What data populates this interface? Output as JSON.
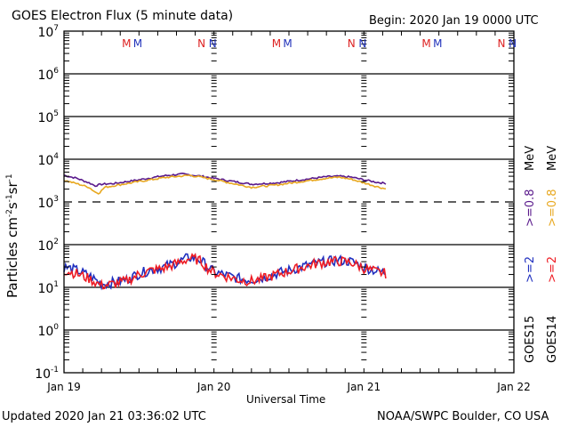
{
  "header": {
    "title": "GOES Electron Flux (5 minute data)",
    "begin": "Begin: 2020 Jan 19 0000 UTC"
  },
  "footer": {
    "updated": "Updated 2020 Jan 21 03:36:02 UTC",
    "source": "NOAA/SWPC Boulder, CO USA"
  },
  "legend": {
    "goes15": "GOES15",
    "goes14": "GOES14",
    "g15_2mev": ">=2",
    "g14_2mev": ">=2",
    "g15_08mev": ">=0.8",
    "g14_08mev": ">=0.8",
    "unit": "MeV"
  },
  "colors": {
    "goes15_2": "#1f2fbf",
    "goes14_2": "#ee1c24",
    "goes15_08": "#5a1a8c",
    "goes14_08": "#e8a820",
    "marker_red": "#dd2222",
    "marker_blue": "#2233bb"
  },
  "chart_data": {
    "type": "line",
    "title": "GOES Electron Flux (5 minute data)",
    "xlabel": "Universal Time",
    "ylabel": "Particles cm-2 s-1 sr-1",
    "x_unit": "hours since 2020 Jan 19 00:00 UTC",
    "xlim": [
      0,
      72
    ],
    "ylim": [
      0.1,
      10000000
    ],
    "yscale": "log",
    "x_tick_labels": [
      "Jan 19",
      "Jan 20",
      "Jan 21",
      "Jan 22"
    ],
    "x_tick_hours": [
      0,
      24,
      48,
      72
    ],
    "y_tick_labels": [
      "10^7",
      "10^6",
      "10^5",
      "10^4",
      "10^3",
      "10^2",
      "10^1",
      "10^0",
      "10^-1"
    ],
    "y_tick_values": [
      10000000,
      1000000,
      100000,
      10000,
      1000,
      100,
      10,
      1,
      0.1
    ],
    "grid": "horizontal decades",
    "threshold_line": {
      "value": 1000,
      "style": "dashed"
    },
    "markers": [
      {
        "label": "M",
        "hour": 10.0,
        "color": "red"
      },
      {
        "label": "M",
        "hour": 11.8,
        "color": "blue"
      },
      {
        "label": "N",
        "hour": 22.0,
        "color": "red"
      },
      {
        "label": "N",
        "hour": 23.8,
        "color": "blue"
      },
      {
        "label": "M",
        "hour": 34.0,
        "color": "red"
      },
      {
        "label": "M",
        "hour": 35.8,
        "color": "blue"
      },
      {
        "label": "N",
        "hour": 46.0,
        "color": "red"
      },
      {
        "label": "N",
        "hour": 47.8,
        "color": "blue"
      },
      {
        "label": "M",
        "hour": 58.0,
        "color": "red"
      },
      {
        "label": "M",
        "hour": 59.8,
        "color": "blue"
      },
      {
        "label": "N",
        "hour": 70.0,
        "color": "red"
      },
      {
        "label": "N",
        "hour": 71.8,
        "color": "blue"
      }
    ],
    "series": [
      {
        "name": "GOES15 >=0.8 MeV",
        "color_key": "goes15_08",
        "noise": 0.02,
        "x": [
          0,
          2,
          4,
          5,
          6,
          8,
          12,
          16,
          19,
          22,
          26,
          30,
          34,
          38,
          42,
          44,
          46,
          48,
          50,
          51.6
        ],
        "values": [
          4200,
          3600,
          2800,
          2400,
          2600,
          2700,
          3300,
          4100,
          4500,
          4000,
          3200,
          2600,
          2800,
          3300,
          3900,
          4000,
          3800,
          3300,
          2900,
          2700
        ]
      },
      {
        "name": "GOES14 >=0.8 MeV",
        "color_key": "goes14_08",
        "noise": 0.02,
        "x": [
          0,
          2,
          4,
          5,
          5.6,
          6.5,
          8,
          12,
          16,
          20,
          22,
          26,
          30,
          34,
          38,
          42,
          44,
          46,
          48,
          50,
          51.6
        ],
        "values": [
          3200,
          2700,
          2200,
          1700,
          1600,
          2200,
          2400,
          3000,
          3700,
          4200,
          3800,
          2900,
          2200,
          2500,
          3000,
          3600,
          3800,
          3400,
          2800,
          2300,
          2000
        ]
      },
      {
        "name": "GOES15 >=2 MeV",
        "color_key": "goes15_2",
        "noise": 0.12,
        "x": [
          0,
          2,
          4,
          6,
          8,
          10,
          12,
          14,
          16,
          18,
          20,
          21,
          22,
          23,
          24,
          26,
          28,
          30,
          32,
          34,
          36,
          38,
          40,
          42,
          44,
          46,
          48,
          50,
          51.6
        ],
        "values": [
          30,
          25,
          19,
          12,
          13,
          15,
          21,
          26,
          30,
          38,
          50,
          48,
          42,
          30,
          23,
          19,
          16,
          15,
          17,
          21,
          25,
          30,
          36,
          40,
          43,
          40,
          30,
          24,
          22
        ]
      },
      {
        "name": "GOES14 >=2 MeV",
        "color_key": "goes14_2",
        "noise": 0.12,
        "x": [
          0,
          2,
          4,
          6,
          8,
          10,
          12,
          14,
          16,
          18,
          20,
          21,
          22,
          23,
          24,
          26,
          28,
          30,
          32,
          34,
          36,
          38,
          40,
          42,
          44,
          46,
          48,
          50,
          51.6
        ],
        "values": [
          25,
          21,
          16,
          11,
          12,
          14,
          20,
          25,
          28,
          36,
          47,
          46,
          40,
          28,
          22,
          18,
          15,
          14,
          16,
          20,
          24,
          29,
          35,
          39,
          41,
          38,
          28,
          23,
          21
        ]
      }
    ]
  }
}
